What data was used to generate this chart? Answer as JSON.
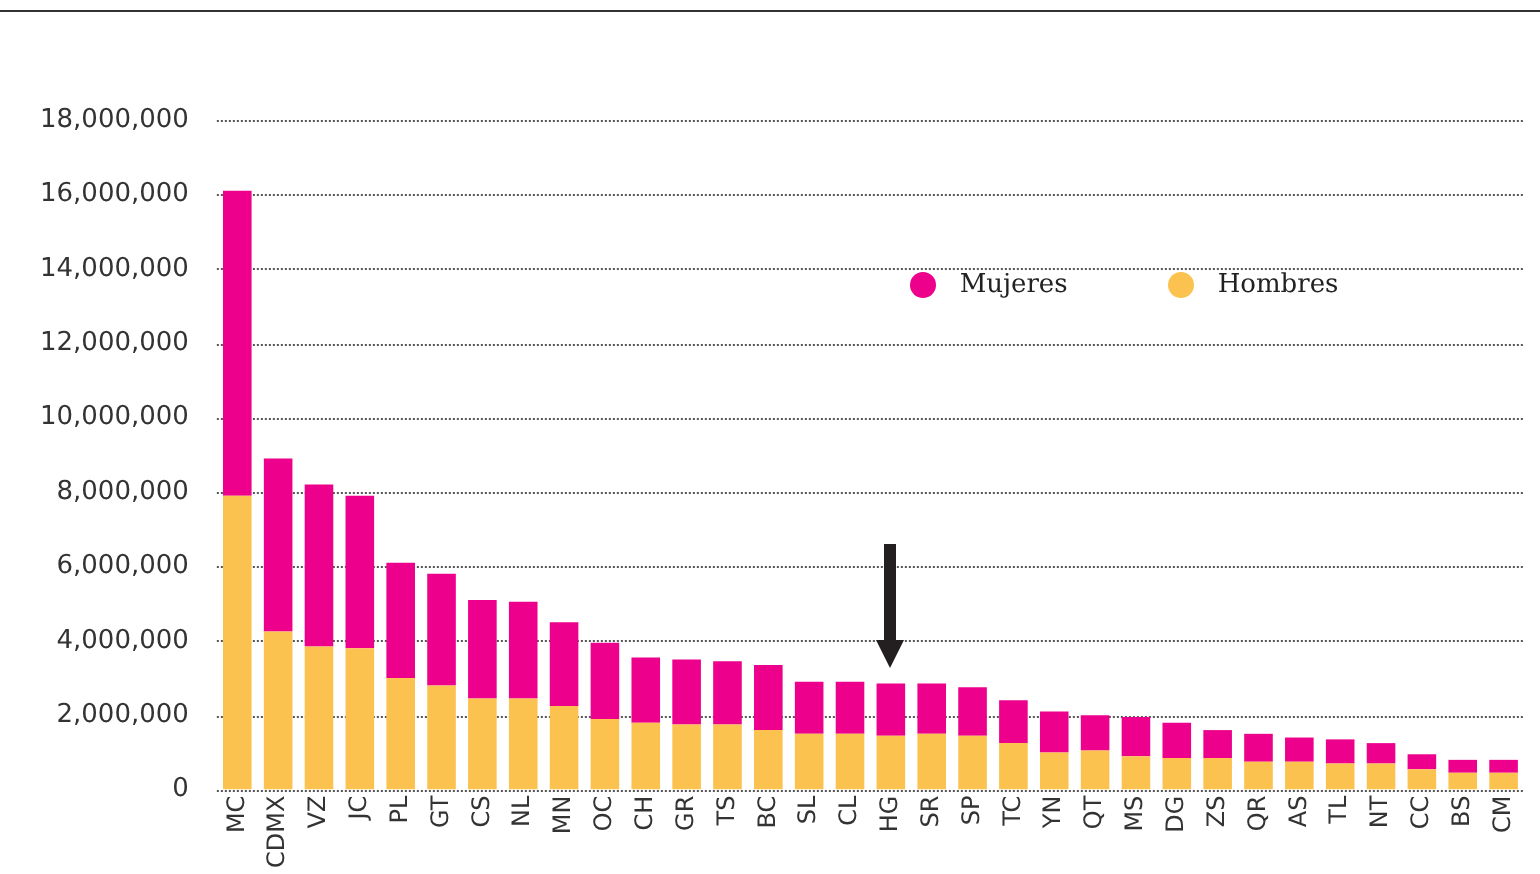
{
  "chart_data": {
    "type": "bar",
    "stacked": true,
    "categories": [
      "MC",
      "CDMX",
      "VZ",
      "JC",
      "PL",
      "GT",
      "CS",
      "NL",
      "MN",
      "OC",
      "CH",
      "GR",
      "TS",
      "BC",
      "SL",
      "CL",
      "HG",
      "SR",
      "SP",
      "TC",
      "YN",
      "QT",
      "MS",
      "DG",
      "ZS",
      "QR",
      "AS",
      "TL",
      "NT",
      "CC",
      "BS",
      "CM"
    ],
    "series": [
      {
        "name": "Hombres",
        "color": "#fcc24f",
        "values": [
          7900000,
          4250000,
          3850000,
          3800000,
          3000000,
          2800000,
          2450000,
          2450000,
          2250000,
          1900000,
          1800000,
          1750000,
          1750000,
          1600000,
          1500000,
          1500000,
          1450000,
          1500000,
          1450000,
          1250000,
          1000000,
          1050000,
          900000,
          850000,
          850000,
          750000,
          750000,
          700000,
          700000,
          550000,
          450000,
          450000
        ]
      },
      {
        "name": "Mujeres",
        "color": "#ec008c",
        "values": [
          8200000,
          4650000,
          4350000,
          4100000,
          3100000,
          3000000,
          2650000,
          2600000,
          2250000,
          2050000,
          1750000,
          1750000,
          1700000,
          1750000,
          1400000,
          1400000,
          1400000,
          1350000,
          1300000,
          1150000,
          1100000,
          950000,
          1050000,
          950000,
          750000,
          750000,
          650000,
          650000,
          550000,
          400000,
          350000,
          350000
        ]
      }
    ],
    "ylim": [
      0,
      18000000
    ],
    "yticks": [
      0,
      {
        "value": 2000000,
        "label": "2,000,000"
      },
      {
        "value": 4000000,
        "label": "4,000,000"
      },
      {
        "value": 6000000,
        "label": "6,000,000"
      },
      {
        "value": 8000000,
        "label": "8,000,000"
      },
      {
        "value": 10000000,
        "label": "10,000,000"
      },
      {
        "value": 12000000,
        "label": "12,000,000"
      },
      {
        "value": 14000000,
        "label": "14,000,000"
      },
      {
        "value": 16000000,
        "label": "16,000,000"
      },
      {
        "value": 18000000,
        "label": "18,000,000"
      }
    ],
    "grid": "y",
    "legend": "top right"
  }
}
